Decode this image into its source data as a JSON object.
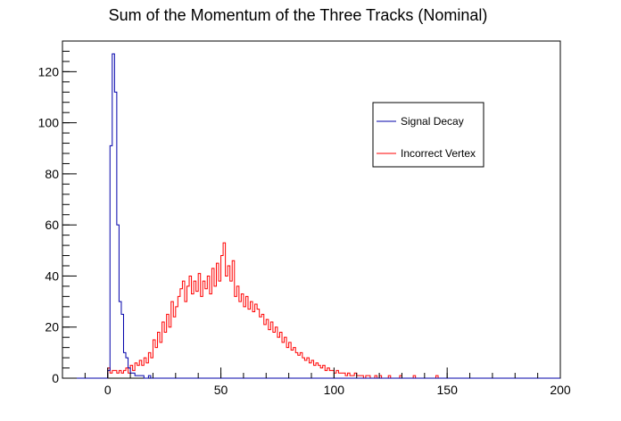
{
  "chart_data": {
    "type": "histogram-step",
    "title": "Sum of the Momentum of the Three Tracks (Nominal)",
    "xlabel": "",
    "ylabel": "",
    "xlim": [
      -20,
      200
    ],
    "ylim": [
      0,
      132
    ],
    "bin_width": 1,
    "grid": false,
    "legend_position": "top-right",
    "x_ticks": [
      0,
      50,
      100,
      150,
      200
    ],
    "y_ticks": [
      0,
      20,
      40,
      60,
      80,
      100,
      120
    ],
    "series": [
      {
        "name": "Signal Decay",
        "color": "#0000aa",
        "x_start": 0,
        "values": [
          3,
          91,
          127,
          112,
          60,
          30,
          25,
          10,
          8,
          4,
          2,
          2,
          1,
          1,
          1,
          1,
          0,
          0,
          1,
          0,
          0,
          0
        ]
      },
      {
        "name": "Incorrect Vertex",
        "color": "#ff0000",
        "x_start": 0,
        "values": [
          4,
          2,
          3,
          3,
          2,
          3,
          2,
          3,
          4,
          2,
          5,
          3,
          6,
          5,
          7,
          5,
          8,
          6,
          10,
          8,
          15,
          12,
          18,
          14,
          22,
          18,
          25,
          20,
          30,
          24,
          28,
          32,
          35,
          38,
          30,
          36,
          40,
          33,
          38,
          34,
          41,
          32,
          38,
          35,
          40,
          33,
          43,
          36,
          45,
          38,
          48,
          53,
          40,
          44,
          38,
          46,
          32,
          36,
          30,
          33,
          28,
          32,
          27,
          30,
          26,
          29,
          27,
          24,
          25,
          21,
          23,
          19,
          22,
          18,
          20,
          16,
          18,
          14,
          16,
          12,
          14,
          11,
          12,
          10,
          9,
          10,
          8,
          7,
          8,
          6,
          7,
          5,
          6,
          5,
          4,
          5,
          3,
          4,
          3,
          3,
          2,
          3,
          2,
          2,
          2,
          1,
          2,
          1,
          1,
          2,
          1,
          1,
          1,
          0,
          1,
          1,
          0,
          0,
          1,
          0,
          1,
          0,
          0,
          0,
          1,
          0,
          0,
          0,
          0,
          1,
          0,
          0,
          0,
          0,
          0,
          1,
          0,
          0,
          0,
          0,
          0,
          0,
          0,
          0,
          0,
          1,
          0,
          0,
          0,
          0,
          0,
          0,
          0,
          0,
          0,
          0,
          0,
          0,
          0,
          0,
          0,
          0,
          0,
          0,
          0,
          0,
          0,
          0,
          0,
          0,
          0,
          0,
          0,
          0,
          0,
          0,
          0,
          0,
          0,
          0,
          0,
          0,
          0,
          0,
          0,
          0,
          0,
          0,
          0,
          0,
          0,
          0,
          0,
          0,
          0,
          0,
          0,
          0,
          0,
          0
        ]
      }
    ]
  }
}
